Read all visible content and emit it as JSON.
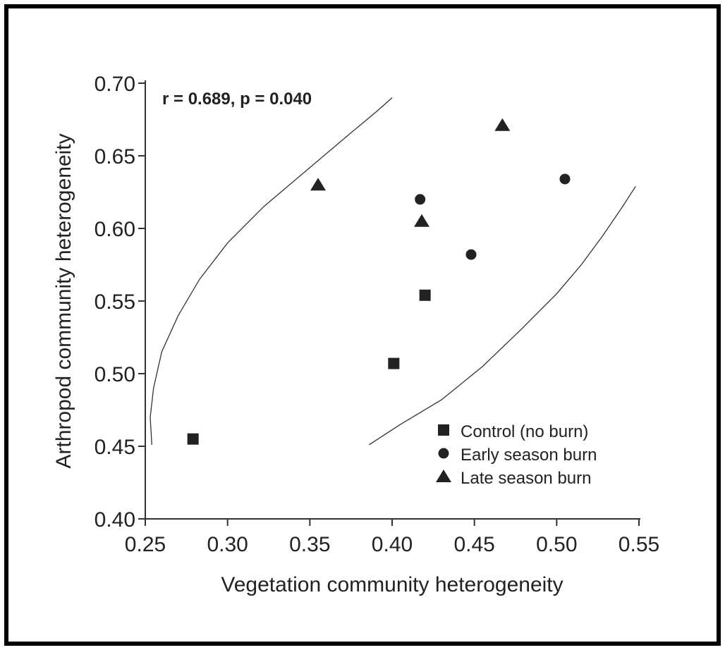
{
  "chart_data": {
    "type": "scatter",
    "title": "",
    "annotation": "r = 0.689, p = 0.040",
    "xlabel": "Vegetation community heterogeneity",
    "ylabel": "Arthropod community heterogeneity",
    "xlim": [
      0.25,
      0.55
    ],
    "ylim": [
      0.4,
      0.7
    ],
    "xticks": [
      "0.25",
      "0.30",
      "0.35",
      "0.40",
      "0.45",
      "0.50",
      "0.55"
    ],
    "yticks": [
      "0.40",
      "0.45",
      "0.50",
      "0.55",
      "0.60",
      "0.65",
      "0.70"
    ],
    "legend_position": "bottom-right",
    "grid": false,
    "series": [
      {
        "name": "Control (no burn)",
        "marker": "square",
        "points": [
          {
            "x": 0.279,
            "y": 0.455
          },
          {
            "x": 0.401,
            "y": 0.507
          },
          {
            "x": 0.42,
            "y": 0.554
          }
        ]
      },
      {
        "name": "Early season burn",
        "marker": "circle",
        "points": [
          {
            "x": 0.417,
            "y": 0.62
          },
          {
            "x": 0.448,
            "y": 0.582
          },
          {
            "x": 0.505,
            "y": 0.634
          }
        ]
      },
      {
        "name": "Late season burn",
        "marker": "triangle",
        "points": [
          {
            "x": 0.355,
            "y": 0.63
          },
          {
            "x": 0.418,
            "y": 0.605
          },
          {
            "x": 0.467,
            "y": 0.671
          }
        ]
      }
    ],
    "confidence_ellipse": {
      "upper_curve": [
        [
          0.254,
          0.451
        ],
        [
          0.253,
          0.47
        ],
        [
          0.255,
          0.49
        ],
        [
          0.26,
          0.515
        ],
        [
          0.27,
          0.54
        ],
        [
          0.283,
          0.565
        ],
        [
          0.3,
          0.59
        ],
        [
          0.322,
          0.615
        ],
        [
          0.348,
          0.64
        ],
        [
          0.372,
          0.663
        ],
        [
          0.39,
          0.68
        ],
        [
          0.4,
          0.69
        ]
      ],
      "lower_curve": [
        [
          0.386,
          0.451
        ],
        [
          0.405,
          0.465
        ],
        [
          0.43,
          0.482
        ],
        [
          0.455,
          0.505
        ],
        [
          0.478,
          0.53
        ],
        [
          0.5,
          0.555
        ],
        [
          0.515,
          0.575
        ],
        [
          0.528,
          0.595
        ],
        [
          0.54,
          0.615
        ],
        [
          0.548,
          0.629
        ]
      ]
    }
  }
}
